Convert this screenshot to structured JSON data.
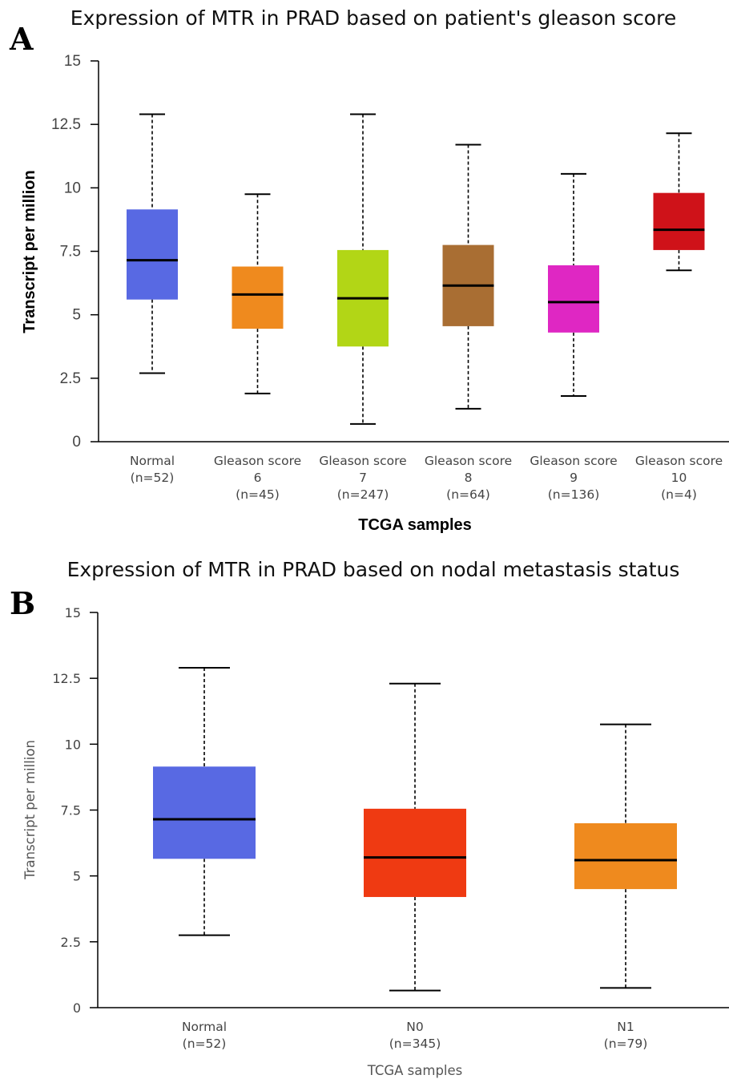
{
  "chart_data": [
    {
      "panel_label": "A",
      "type": "box",
      "title": "Expression of MTR in PRAD based on patient's gleason score",
      "xlabel": "TCGA samples",
      "ylabel": "Transcript per million",
      "ylim": [
        0,
        15
      ],
      "yticks": [
        "0",
        "2.5",
        "5",
        "7.5",
        "10",
        "12.5",
        "15"
      ],
      "grid": false,
      "categories": [
        {
          "name": "Normal",
          "n": "(n=52)",
          "whisker_low": 2.7,
          "q1": 5.6,
          "median": 7.15,
          "q3": 9.15,
          "whisker_high": 12.9,
          "color": "#5869e3"
        },
        {
          "name": "Gleason score 6",
          "n": "(n=45)",
          "whisker_low": 1.9,
          "q1": 4.45,
          "median": 5.8,
          "q3": 6.9,
          "whisker_high": 9.75,
          "color": "#ef8a1e"
        },
        {
          "name": "Gleason score 7",
          "n": "(n=247)",
          "whisker_low": 0.7,
          "q1": 3.75,
          "median": 5.65,
          "q3": 7.55,
          "whisker_high": 12.9,
          "color": "#b2d616"
        },
        {
          "name": "Gleason score 8",
          "n": "(n=64)",
          "whisker_low": 1.3,
          "q1": 4.55,
          "median": 6.15,
          "q3": 7.75,
          "whisker_high": 11.7,
          "color": "#a96e33"
        },
        {
          "name": "Gleason score 9",
          "n": "(n=136)",
          "whisker_low": 1.8,
          "q1": 4.3,
          "median": 5.5,
          "q3": 6.95,
          "whisker_high": 10.55,
          "color": "#df27c3"
        },
        {
          "name": "Gleason score 10",
          "n": "(n=4)",
          "whisker_low": 6.75,
          "q1": 7.55,
          "median": 8.35,
          "q3": 9.8,
          "whisker_high": 12.15,
          "color": "#cf1219"
        }
      ]
    },
    {
      "panel_label": "B",
      "type": "box",
      "title": "Expression of MTR in PRAD based on nodal metastasis status",
      "xlabel": "TCGA samples",
      "ylabel": "Transcript per million",
      "ylim": [
        0,
        15
      ],
      "yticks": [
        "0",
        "2.5",
        "5",
        "7.5",
        "10",
        "12.5",
        "15"
      ],
      "grid": false,
      "categories": [
        {
          "name": "Normal",
          "n": "(n=52)",
          "whisker_low": 2.75,
          "q1": 5.65,
          "median": 7.15,
          "q3": 9.15,
          "whisker_high": 12.9,
          "color": "#5869e3"
        },
        {
          "name": "N0",
          "n": "(n=345)",
          "whisker_low": 0.65,
          "q1": 4.2,
          "median": 5.7,
          "q3": 7.55,
          "whisker_high": 12.3,
          "color": "#ef3a12"
        },
        {
          "name": "N1",
          "n": "(n=79)",
          "whisker_low": 0.75,
          "q1": 4.5,
          "median": 5.6,
          "q3": 7.0,
          "whisker_high": 10.75,
          "color": "#ef8a1e"
        }
      ]
    }
  ]
}
